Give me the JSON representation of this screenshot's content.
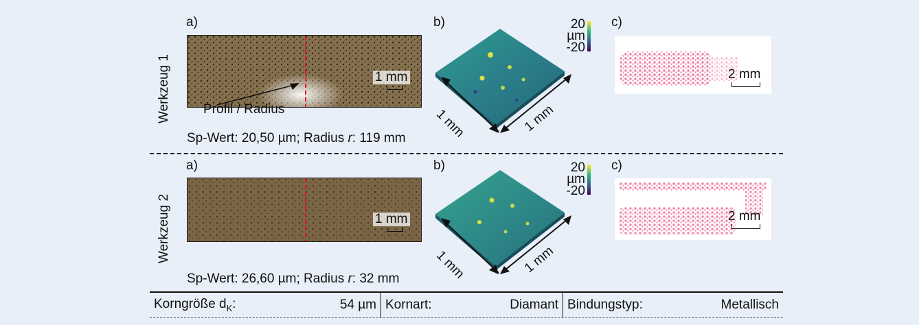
{
  "colors": {
    "background": "#e6eef8",
    "dashed_cut": "#e0161e",
    "pink_points": "#ec6f95",
    "photo_brown": "#7c6847"
  },
  "rows": [
    {
      "tool_label": "Werkzeug 1",
      "panel_a": "a)",
      "panel_b": "b)",
      "panel_c": "c)",
      "scale_a": "1 mm",
      "scale_c": "2 mm",
      "annotation": "Profil / Radius",
      "colorbar": {
        "max": "20",
        "unit": "µm",
        "min": "-20"
      },
      "axis_left": "1 mm",
      "axis_right": "1 mm",
      "sp_prefix": "Sp-Wert: 20,50 µm; Radius ",
      "sp_r": "r",
      "sp_suffix": ": 119 mm"
    },
    {
      "tool_label": "Werkzeug 2",
      "panel_a": "a)",
      "panel_b": "b)",
      "panel_c": "c)",
      "scale_a": "1 mm",
      "scale_c": "2 mm",
      "colorbar": {
        "max": "20",
        "unit": "µm",
        "min": "-20"
      },
      "axis_left": "1 mm",
      "axis_right": "1 mm",
      "sp_prefix": "Sp-Wert: 26,60 µm; Radius ",
      "sp_r": "r",
      "sp_suffix": ": 32 mm"
    }
  ],
  "table": {
    "grain_label": "Korngröße d",
    "grain_sub": "K",
    "grain_colon": ":",
    "grain_value": "54 µm",
    "type_label": "Kornart:",
    "type_value": "Diamant",
    "bond_label": "Bindungstyp:",
    "bond_value": "Metallisch"
  }
}
